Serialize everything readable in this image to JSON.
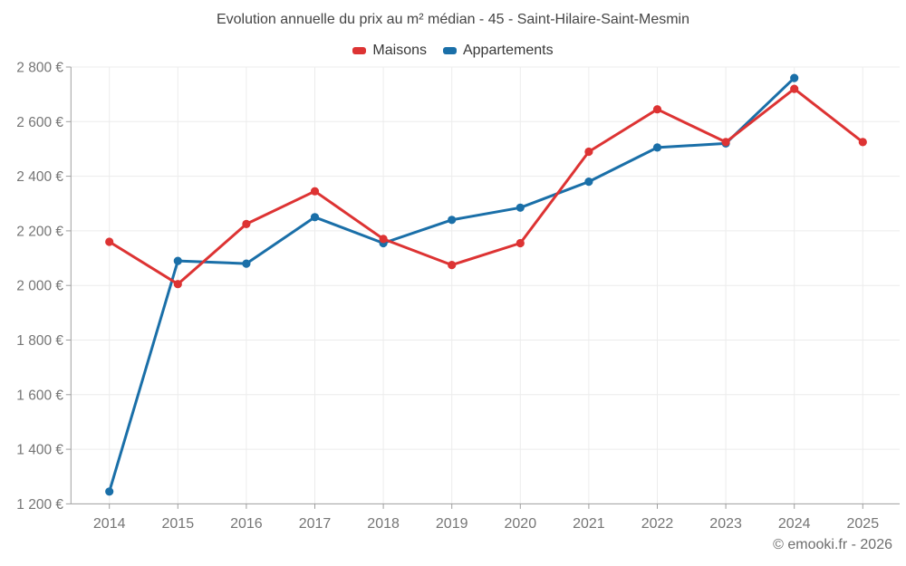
{
  "footer": {
    "copyright": "© emooki.fr - 2026"
  },
  "chart_data": {
    "type": "line",
    "title": "Evolution annuelle du prix au m² médian - 45 - Saint-Hilaire-Saint-Mesmin",
    "x": [
      2014,
      2015,
      2016,
      2017,
      2018,
      2019,
      2020,
      2021,
      2022,
      2023,
      2024,
      2025
    ],
    "series": [
      {
        "name": "Maisons",
        "color": "#dd3333",
        "values": [
          2160,
          2005,
          2225,
          2345,
          2170,
          2075,
          2155,
          2490,
          2645,
          2525,
          2720,
          2525
        ]
      },
      {
        "name": "Appartements",
        "color": "#1a6fa8",
        "values": [
          1245,
          2090,
          2080,
          2250,
          2155,
          2240,
          2285,
          2380,
          2505,
          2520,
          2760,
          null
        ]
      }
    ],
    "ylim": [
      1200,
      2800
    ],
    "ytick_step": 200,
    "ytick_labels": [
      "1 200 €",
      "1 400 €",
      "1 600 €",
      "1 800 €",
      "2 000 €",
      "2 200 €",
      "2 400 €",
      "2 600 €",
      "2 800 €"
    ],
    "currency_suffix": "€",
    "grid": true,
    "legend_position": "top",
    "grid_color": "#ececec",
    "axis_color": "#9e9e9e",
    "tick_label_color": "#757575"
  }
}
